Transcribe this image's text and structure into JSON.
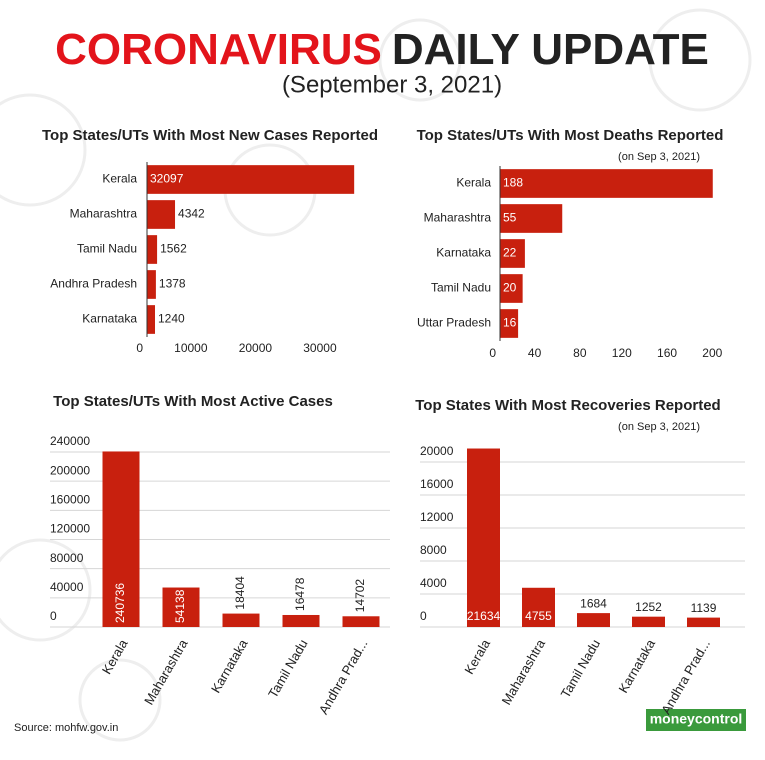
{
  "header": {
    "title_red": "CORONAVIRUS",
    "title_dark": "DAILY UPDATE",
    "subtitle": "(September 3, 2021)"
  },
  "chart_data": [
    {
      "type": "bar",
      "orientation": "horizontal",
      "title": "Top States/UTs With Most New Cases Reported",
      "categories": [
        "Kerala",
        "Maharashtra",
        "Tamil Nadu",
        "Andhra Pradesh",
        "Karnataka"
      ],
      "values": [
        32097,
        4342,
        1562,
        1378,
        1240
      ],
      "color": "#c8200e",
      "xlim": [
        0,
        33000
      ],
      "xticks": [
        0,
        10000,
        20000,
        30000
      ],
      "grid": false
    },
    {
      "type": "bar",
      "orientation": "horizontal",
      "title": "Top States/UTs With Most Deaths Reported",
      "subtitle": "(on Sep 3, 2021)",
      "categories": [
        "Kerala",
        "Maharashtra",
        "Karnataka",
        "Tamil Nadu",
        "Uttar Pradesh"
      ],
      "values": [
        188,
        55,
        22,
        20,
        16
      ],
      "color": "#c8200e",
      "xlim": [
        0,
        205
      ],
      "xticks": [
        0,
        40,
        80,
        120,
        160,
        200
      ],
      "grid": false
    },
    {
      "type": "bar",
      "orientation": "vertical",
      "title": "Top States/UTs With Most Active Cases",
      "categories": [
        "Kerala",
        "Maharashtra",
        "Karnataka",
        "Tamil Nadu",
        "Andhra Prad..."
      ],
      "values": [
        240736,
        54138,
        18404,
        16478,
        14702
      ],
      "color": "#c8200e",
      "ylim": [
        0,
        240000
      ],
      "yticks": [
        0,
        40000,
        80000,
        120000,
        160000,
        200000,
        240000
      ],
      "grid": true
    },
    {
      "type": "bar",
      "orientation": "vertical",
      "title": "Top States With Most Recoveries Reported",
      "subtitle": "(on Sep 3, 2021)",
      "categories": [
        "Kerala",
        "Maharashtra",
        "Tamil Nadu",
        "Karnataka",
        "Andhra Prad..."
      ],
      "values": [
        21634,
        4755,
        1684,
        1252,
        1139
      ],
      "color": "#c8200e",
      "ylim": [
        0,
        22000
      ],
      "yticks": [
        0,
        4000,
        8000,
        12000,
        16000,
        20000
      ],
      "grid": true
    }
  ],
  "footer": {
    "source": "Source: mohfw.gov.in",
    "logo": "moneycontrol"
  }
}
